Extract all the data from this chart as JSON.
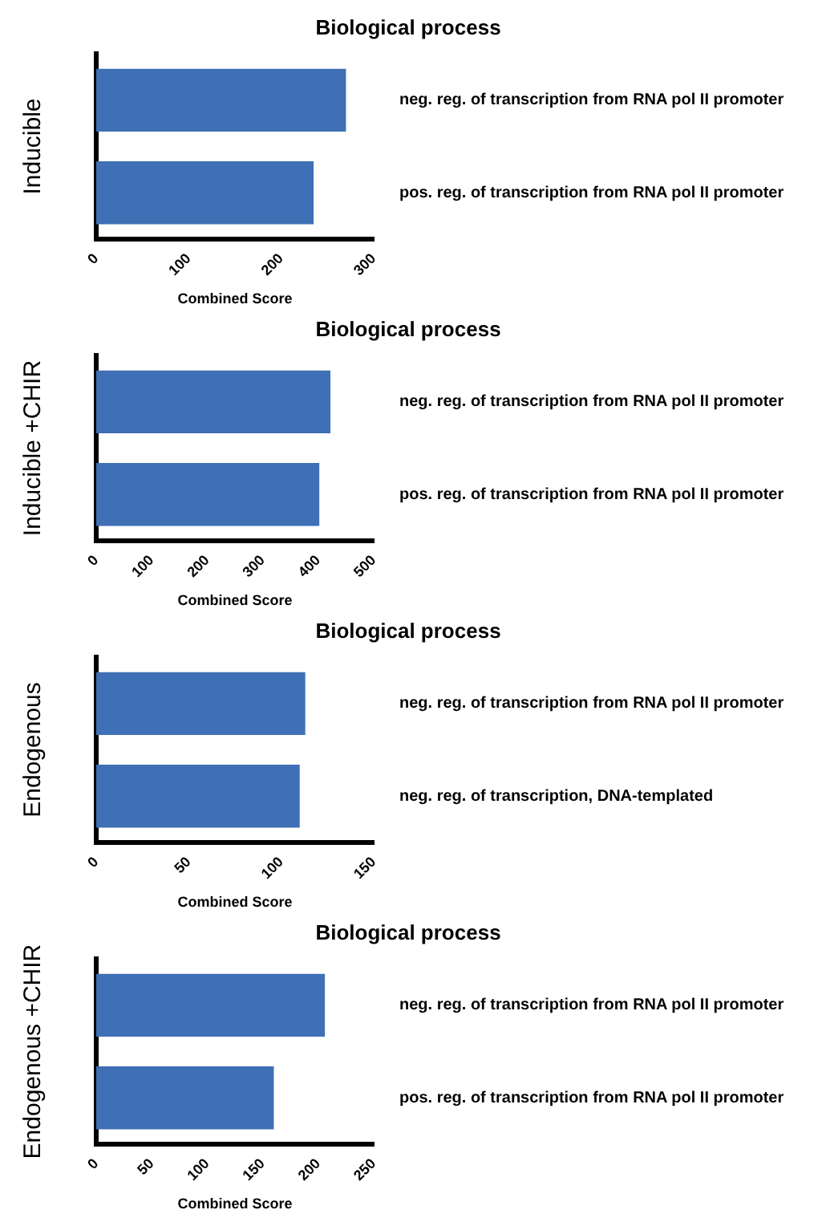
{
  "chart_data": [
    {
      "type": "bar",
      "orientation": "horizontal",
      "title": "Biological process",
      "ylabel": "Inducible",
      "xlabel": "Combined Score",
      "categories": [
        "neg. reg. of transcription from RNA pol II promoter",
        "pos. reg. of transcription from RNA pol II promoter"
      ],
      "values": [
        270,
        235
      ],
      "color": "#3f6fb5",
      "xlim": [
        0,
        300
      ],
      "xticks": [
        0,
        100,
        200,
        300
      ]
    },
    {
      "type": "bar",
      "orientation": "horizontal",
      "title": "Biological process",
      "ylabel": "Inducible +CHIR",
      "xlabel": "Combined Score",
      "categories": [
        "neg. reg. of transcription from RNA pol II promoter",
        "pos. reg. of transcription from RNA pol II promoter"
      ],
      "values": [
        422,
        402
      ],
      "color": "#3f6fb5",
      "xlim": [
        0,
        500
      ],
      "xticks": [
        0,
        100,
        200,
        300,
        400,
        500
      ]
    },
    {
      "type": "bar",
      "orientation": "horizontal",
      "title": "Biological process",
      "ylabel": "Endogenous",
      "xlabel": "Combined Score",
      "categories": [
        "neg. reg. of transcription from RNA pol II promoter",
        "neg. reg. of transcription, DNA-templated"
      ],
      "values": [
        113,
        110
      ],
      "color": "#3f6fb5",
      "xlim": [
        0,
        150
      ],
      "xticks": [
        0,
        50,
        100,
        150
      ]
    },
    {
      "type": "bar",
      "orientation": "horizontal",
      "title": "Biological process",
      "ylabel": "Endogenous +CHIR",
      "xlabel": "Combined Score",
      "categories": [
        "neg. reg. of transcription from RNA pol II promoter",
        "pos. reg. of transcription from RNA pol II promoter"
      ],
      "values": [
        206,
        160
      ],
      "color": "#3f6fb5",
      "xlim": [
        0,
        250
      ],
      "xticks": [
        0,
        50,
        100,
        150,
        200,
        250
      ]
    }
  ]
}
